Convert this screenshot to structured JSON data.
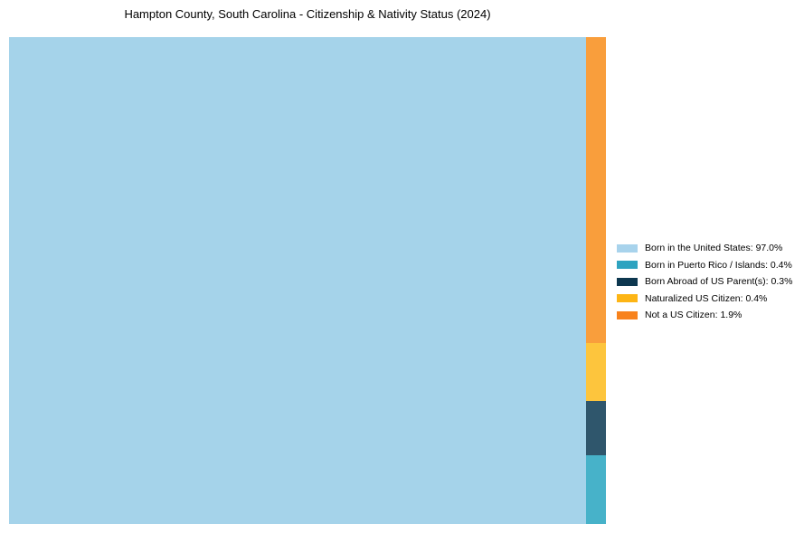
{
  "page": {
    "title": "Hampton County, South Carolina - Citizenship & Nativity Status (2024)"
  },
  "chart_data": {
    "type": "treemap",
    "title": "Hampton County, South Carolina - Citizenship & Nativity Status (2024)",
    "unit": "percent",
    "categories": [
      "Born in the United States",
      "Born in Puerto Rico / Islands",
      "Born Abroad of US Parent(s)",
      "Naturalized US Citizen",
      "Not a US Citizen"
    ],
    "values": [
      97.0,
      0.4,
      0.3,
      0.4,
      1.9
    ],
    "legend_position": "right",
    "grid": false,
    "main_rect": {
      "name": "Born in the United States",
      "value_pct": 97.0,
      "color": "#a5d3ea"
    },
    "strip_segments": [
      {
        "name": "Not a US Citizen",
        "value_pct": 1.9,
        "color": "#f99e3c",
        "height_frac": 0.6289
      },
      {
        "name": "Naturalized US Citizen",
        "value_pct": 0.4,
        "color": "#fdc53d",
        "height_frac": 0.1178
      },
      {
        "name": "Born Abroad of US Parent(s)",
        "value_pct": 0.3,
        "color": "#2f566c",
        "height_frac": 0.1121
      },
      {
        "name": "Born in Puerto Rico / Islands",
        "value_pct": 0.4,
        "color": "#47b2c9",
        "height_frac": 0.1412
      }
    ],
    "legend": [
      {
        "label": "Born in the United States: 97.0%",
        "color": "#a8d3ec"
      },
      {
        "label": "Born in Puerto Rico / Islands: 0.4%",
        "color": "#2ea3c0"
      },
      {
        "label": "Born Abroad of US Parent(s): 0.3%",
        "color": "#0d374f"
      },
      {
        "label": "Naturalized US Citizen: 0.4%",
        "color": "#fdb515"
      },
      {
        "label": "Not a US Citizen: 1.9%",
        "color": "#f8821c"
      }
    ]
  }
}
